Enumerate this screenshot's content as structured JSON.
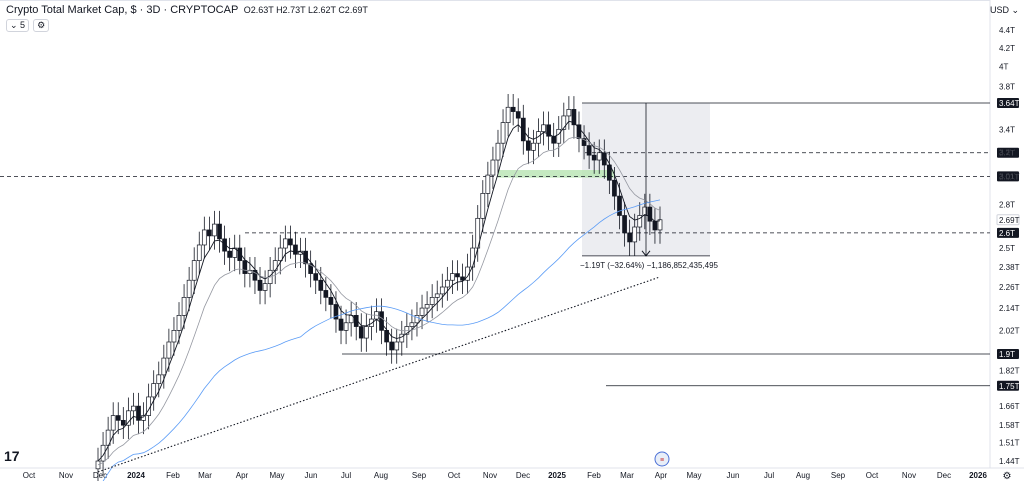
{
  "header": {
    "title": "Crypto Total Market Cap, $ · 3D · CRYPTOCAP",
    "open": "O2.63T",
    "high": "H2.73T",
    "low": "L2.62T",
    "close": "C2.69T",
    "interval_pill": "5",
    "currency": "USD"
  },
  "colors": {
    "up": "#ffffff",
    "down": "#131722",
    "ema_short": "#131722",
    "ema_long": "#9598a1",
    "sma200": "#5b9cf6",
    "support_zone": "#b7e4b1",
    "measure_box": "#e9eaee"
  },
  "chart_data": {
    "type": "candlestick",
    "x_ticks": [
      "Oct",
      "Nov",
      "Dec",
      "2024",
      "Feb",
      "Mar",
      "Apr",
      "May",
      "Jun",
      "Jul",
      "Aug",
      "Sep",
      "Oct",
      "Nov",
      "Dec",
      "2025",
      "Feb",
      "Mar",
      "Apr",
      "May",
      "Jun",
      "Jul",
      "Aug",
      "Sep",
      "Oct",
      "Nov",
      "Dec",
      "2026"
    ],
    "y_ticks": [
      "4.4T",
      "4.2T",
      "4T",
      "3.8T",
      "3.4T",
      "3.2T",
      "3.01T",
      "2.8T",
      "2.5T",
      "2.38T",
      "2.26T",
      "2.14T",
      "2.02T",
      "1.82T",
      "1.66T",
      "1.58T",
      "1.51T",
      "1.44T"
    ],
    "y_log": true,
    "y_range": [
      1.43,
      4.6
    ],
    "horizontal_levels": [
      {
        "label": "3.64T",
        "value": 3.64,
        "style": "solid"
      },
      {
        "label": "3.2T",
        "value": 3.2,
        "style": "dashed"
      },
      {
        "label": "3.01T",
        "value": 3.01,
        "style": "dashed"
      },
      {
        "label": "2.69T",
        "value": 2.69,
        "style": "price"
      },
      {
        "label": "2.6T",
        "value": 2.6,
        "style": "dashed"
      },
      {
        "label": "1.9T",
        "value": 1.9,
        "style": "solid"
      },
      {
        "label": "1.75T",
        "value": 1.75,
        "style": "solid"
      }
    ],
    "measure_label": "−1.19T (−32.64%) −1,186,852,435,495",
    "close_series": [
      1.44,
      1.5,
      1.56,
      1.62,
      1.6,
      1.58,
      1.64,
      1.66,
      1.6,
      1.62,
      1.7,
      1.76,
      1.8,
      1.88,
      1.96,
      2.02,
      2.1,
      2.2,
      2.3,
      2.42,
      2.52,
      2.62,
      2.58,
      2.66,
      2.56,
      2.48,
      2.44,
      2.5,
      2.42,
      2.34,
      2.36,
      2.3,
      2.24,
      2.28,
      2.36,
      2.42,
      2.5,
      2.56,
      2.52,
      2.46,
      2.48,
      2.4,
      2.34,
      2.3,
      2.24,
      2.2,
      2.16,
      2.08,
      2.02,
      2.06,
      2.1,
      2.04,
      1.98,
      2.04,
      2.08,
      2.12,
      2.02,
      1.96,
      1.92,
      1.96,
      2.0,
      2.04,
      2.06,
      2.1,
      2.14,
      2.16,
      2.2,
      2.22,
      2.26,
      2.3,
      2.34,
      2.32,
      2.3,
      2.38,
      2.5,
      2.7,
      2.88,
      3.02,
      3.14,
      3.28,
      3.46,
      3.6,
      3.56,
      3.5,
      3.3,
      3.22,
      3.28,
      3.38,
      3.44,
      3.34,
      3.28,
      3.4,
      3.52,
      3.58,
      3.44,
      3.32,
      3.26,
      3.18,
      3.14,
      3.2,
      3.1,
      2.98,
      2.86,
      2.72,
      2.6,
      2.54,
      2.64,
      2.72,
      2.78,
      2.68,
      2.62,
      2.69
    ]
  }
}
